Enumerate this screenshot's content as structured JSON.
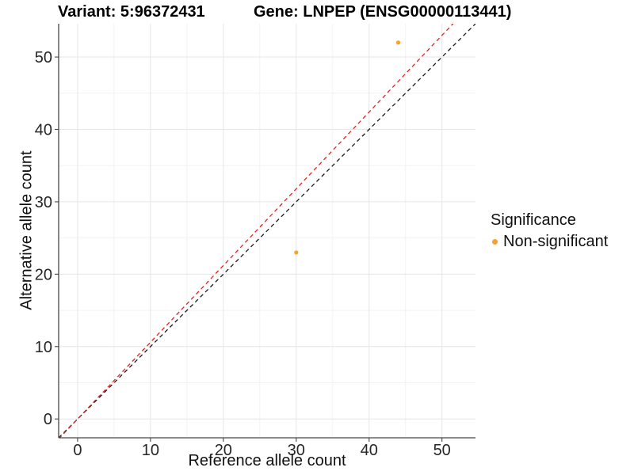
{
  "titles": {
    "variant": "Variant: 5:96372431",
    "gene": "Gene: LNPEP (ENSG00000113441)"
  },
  "legend": {
    "title": "Significance",
    "items": [
      {
        "label": "Non-significant",
        "color": "#F9A12C"
      }
    ]
  },
  "chart_data": {
    "type": "scatter",
    "xlabel": "Reference allele count",
    "ylabel": "Alternative allele count",
    "x_ticks": [
      0,
      10,
      20,
      30,
      40,
      50
    ],
    "y_ticks": [
      0,
      10,
      20,
      30,
      40,
      50
    ],
    "x_minor_ticks": [
      5,
      15,
      25,
      35,
      45
    ],
    "y_minor_ticks": [
      5,
      15,
      25,
      35,
      45
    ],
    "x_domain": [
      -2.6,
      54.6
    ],
    "y_domain": [
      -2.6,
      54.6
    ],
    "grid": "major+minor",
    "legend_position": "right",
    "points": [
      {
        "x": 30,
        "y": 23,
        "series": "Non-significant"
      },
      {
        "x": 44,
        "y": 52,
        "series": "Non-significant"
      }
    ],
    "point_color": "#F9A12C",
    "point_radius_px": 2.6,
    "reference_lines": [
      {
        "name": "identity y=x",
        "slope": 1,
        "intercept": 0,
        "color": "#1A1A1A",
        "style": "dashed"
      },
      {
        "name": "expected ratio",
        "slope": 1.06,
        "intercept": 0,
        "color": "#E8201E",
        "style": "dashed"
      }
    ]
  },
  "colors": {
    "background": "#FFFFFF",
    "grid_major": "#E6E6E6",
    "grid_minor": "#F2F2F2",
    "axis_line": "#474747",
    "tick_label": "#262626"
  }
}
